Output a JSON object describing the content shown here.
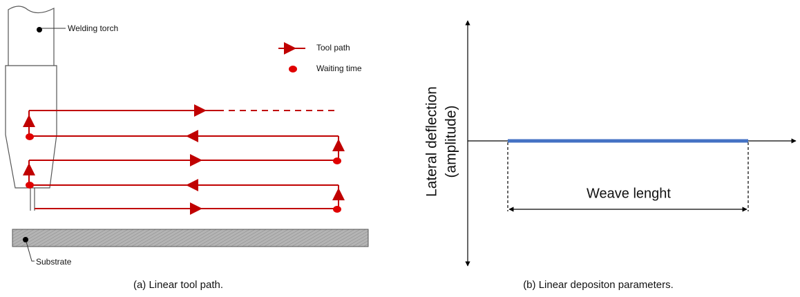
{
  "panel_a": {
    "torch_label": "Welding torch",
    "legend": [
      "Tool path",
      "Waiting time"
    ],
    "substrate_label": "Substrate",
    "caption": "(a)  Linear tool path."
  },
  "panel_b": {
    "y_label": [
      "Lateral deflection",
      "(amplitude)"
    ],
    "weave_label": "Weave lenght",
    "caption": "(b)  Linear depositon parameters."
  }
}
